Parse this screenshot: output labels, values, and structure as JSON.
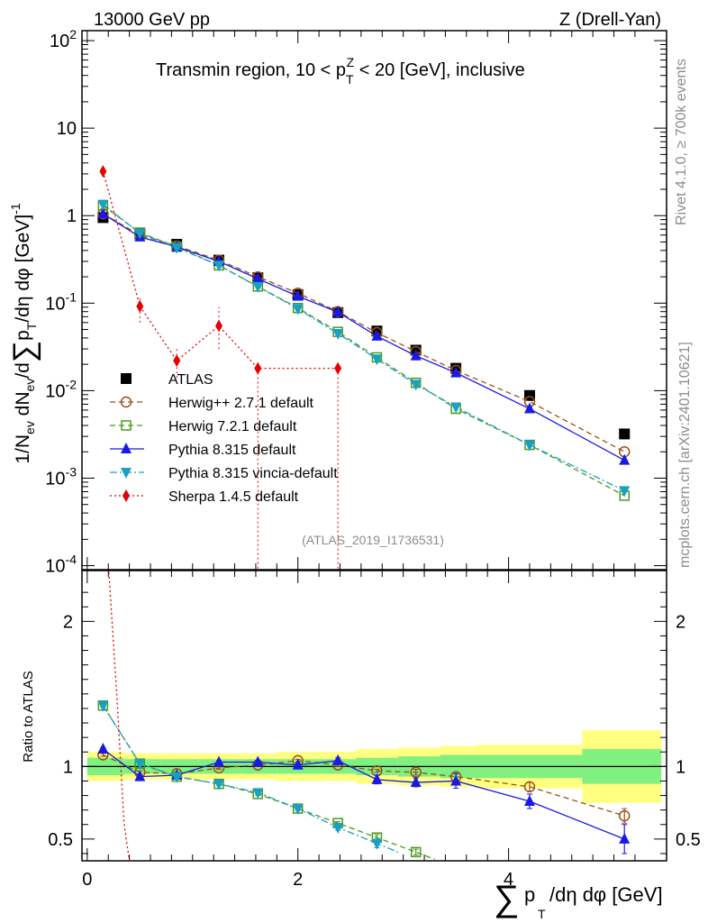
{
  "chart_data": [
    {
      "type": "scatter",
      "title": "Transmin region, 10 < p_T^Z < 20 [GeV], inclusive",
      "header_left": "13000 GeV pp",
      "header_right": "Z (Drell-Yan)",
      "analysis_id": "(ATLAS_2019_I1736531)",
      "ylabel": "1/N_ev dN_ev/d∑p_T/dη dφ [GeV]^-1",
      "yscale": "log",
      "ylim": [
        9e-05,
        130
      ],
      "xlim": [
        -0.05,
        5.5
      ],
      "y_ticks": [
        {
          "v": 100,
          "m": "10",
          "e": "2"
        },
        {
          "v": 10,
          "m": "10",
          "e": ""
        },
        {
          "v": 1,
          "m": "1",
          "e": ""
        },
        {
          "v": 0.1,
          "m": "10",
          "e": "-1"
        },
        {
          "v": 0.01,
          "m": "10",
          "e": "-2"
        },
        {
          "v": 0.001,
          "m": "10",
          "e": "-3"
        },
        {
          "v": 0.0001,
          "m": "10",
          "e": "-4"
        }
      ],
      "series": [
        {
          "name": "ATLAS",
          "color": "#000000",
          "marker": "square",
          "linestyle": "none",
          "x": [
            0.15,
            0.5,
            0.85,
            1.25,
            1.62,
            2.0,
            2.38,
            2.75,
            3.12,
            3.5,
            4.2,
            5.1
          ],
          "y": [
            0.95,
            0.62,
            0.47,
            0.31,
            0.195,
            0.125,
            0.078,
            0.048,
            0.029,
            0.018,
            0.0088,
            0.0032
          ]
        },
        {
          "name": "Herwig++ 2.7.1 default",
          "color": "#9b4f1a",
          "marker": "circle-open",
          "linestyle": "dashed",
          "x": [
            0.15,
            0.5,
            0.85,
            1.25,
            1.62,
            2.0,
            2.38,
            2.75,
            3.12,
            3.5,
            4.2,
            5.1
          ],
          "y": [
            1.05,
            0.6,
            0.45,
            0.31,
            0.2,
            0.13,
            0.08,
            0.046,
            0.028,
            0.017,
            0.0075,
            0.002
          ]
        },
        {
          "name": "Herwig 7.2.1 default",
          "color": "#4a9a1e",
          "marker": "square-open",
          "linestyle": "dashed",
          "x": [
            0.15,
            0.5,
            0.85,
            1.25,
            1.62,
            2.0,
            2.38,
            2.75,
            3.12,
            3.5,
            4.2,
            5.1
          ],
          "y": [
            1.3,
            0.64,
            0.44,
            0.27,
            0.155,
            0.088,
            0.047,
            0.024,
            0.0123,
            0.0062,
            0.0024,
            0.00063
          ]
        },
        {
          "name": "Pythia 8.315 default",
          "color": "#1a1ae6",
          "marker": "triangle-up",
          "linestyle": "solid",
          "x": [
            0.15,
            0.5,
            0.85,
            1.25,
            1.62,
            2.0,
            2.38,
            2.75,
            3.12,
            3.5,
            4.2,
            5.1
          ],
          "y": [
            1.05,
            0.57,
            0.44,
            0.3,
            0.19,
            0.12,
            0.079,
            0.042,
            0.025,
            0.016,
            0.0062,
            0.0016
          ]
        },
        {
          "name": "Pythia 8.315 vincia-default",
          "color": "#1aa0c4",
          "marker": "triangle-down",
          "linestyle": "dashdot",
          "x": [
            0.15,
            0.5,
            0.85,
            1.25,
            1.62,
            2.0,
            2.38,
            2.75,
            3.12,
            3.5,
            4.2,
            5.1
          ],
          "y": [
            1.35,
            0.63,
            0.43,
            0.27,
            0.155,
            0.086,
            0.045,
            0.023,
            0.0118,
            0.0065,
            0.0024,
            0.00072
          ]
        },
        {
          "name": "Sherpa 1.4.5 default",
          "color": "#e60000",
          "marker": "diamond",
          "linestyle": "dotted",
          "x": [
            0.15,
            0.5,
            0.85,
            1.25,
            1.62,
            2.38
          ],
          "y": [
            3.2,
            0.092,
            0.022,
            0.055,
            0.018,
            0.018
          ]
        }
      ],
      "legend_position": "center-left"
    },
    {
      "type": "scatter",
      "title": "Ratio to ATLAS",
      "ylabel": "Ratio to ATLAS",
      "xlabel": "∑p_T/dη dφ [GeV]",
      "ylim": [
        0.35,
        2.35
      ],
      "xlim": [
        -0.05,
        5.5
      ],
      "x_ticks": [
        0,
        2,
        4
      ],
      "y_ticks": [
        0.5,
        1,
        2
      ],
      "band_edges": [
        0,
        0.35,
        0.7,
        1.05,
        1.45,
        1.8,
        2.2,
        2.55,
        2.95,
        3.35,
        3.7,
        4.7,
        5.45
      ],
      "band_inner": [
        0.06,
        0.05,
        0.05,
        0.05,
        0.05,
        0.05,
        0.05,
        0.06,
        0.07,
        0.08,
        0.08,
        0.12
      ],
      "band_outer": [
        0.1,
        0.09,
        0.09,
        0.09,
        0.09,
        0.1,
        0.1,
        0.12,
        0.13,
        0.14,
        0.15,
        0.25
      ],
      "series": [
        {
          "name": "Herwig++ 2.7.1 default",
          "color": "#9b4f1a",
          "marker": "circle-open",
          "linestyle": "dashed",
          "x": [
            0.15,
            0.5,
            0.85,
            1.25,
            1.62,
            2.0,
            2.38,
            2.75,
            3.12,
            3.5,
            4.2,
            5.1
          ],
          "y": [
            1.08,
            0.96,
            0.95,
            0.99,
            1.01,
            1.04,
            1.01,
            0.97,
            0.96,
            0.93,
            0.86,
            0.66
          ],
          "err": [
            0.01,
            0.01,
            0.01,
            0.01,
            0.01,
            0.01,
            0.01,
            0.01,
            0.02,
            0.03,
            0.03,
            0.05
          ]
        },
        {
          "name": "Herwig 7.2.1 default",
          "color": "#4a9a1e",
          "marker": "square-open",
          "linestyle": "dashed",
          "x": [
            0.15,
            0.5,
            0.85,
            1.25,
            1.62,
            2.0,
            2.38,
            2.75,
            3.12,
            3.3
          ],
          "y": [
            1.42,
            1.02,
            0.93,
            0.88,
            0.81,
            0.71,
            0.61,
            0.51,
            0.41,
            0.36
          ],
          "err": [
            0.01,
            0.01,
            0.01,
            0.01,
            0.01,
            0.01,
            0.01,
            0.02,
            0.02,
            0.0
          ]
        },
        {
          "name": "Pythia 8.315 default",
          "color": "#1a1ae6",
          "marker": "triangle-up",
          "linestyle": "solid",
          "x": [
            0.15,
            0.5,
            0.85,
            1.25,
            1.62,
            2.0,
            2.38,
            2.75,
            3.12,
            3.5,
            4.2,
            5.1
          ],
          "y": [
            1.12,
            0.93,
            0.94,
            1.03,
            1.03,
            1.01,
            1.04,
            0.91,
            0.89,
            0.9,
            0.76,
            0.5
          ],
          "err": [
            0.01,
            0.01,
            0.01,
            0.01,
            0.01,
            0.01,
            0.02,
            0.03,
            0.03,
            0.05,
            0.05,
            0.1
          ]
        },
        {
          "name": "Pythia 8.315 vincia-default",
          "color": "#1aa0c4",
          "marker": "triangle-down",
          "linestyle": "dashdot",
          "x": [
            0.15,
            0.5,
            0.85,
            1.25,
            1.62,
            2.0,
            2.38,
            2.75,
            2.95
          ],
          "y": [
            1.42,
            1.02,
            0.93,
            0.88,
            0.82,
            0.71,
            0.58,
            0.47,
            0.41
          ],
          "err": [
            0.01,
            0.01,
            0.01,
            0.01,
            0.01,
            0.01,
            0.02,
            0.03,
            0.0
          ]
        },
        {
          "name": "Sherpa 1.4.5 default",
          "color": "#e60000",
          "marker": "none",
          "linestyle": "dotted",
          "x": [
            0.2,
            0.28,
            0.35,
            0.4
          ],
          "y": [
            2.4,
            1.5,
            0.6,
            0.35
          ],
          "err": [
            0,
            0,
            0,
            0
          ]
        }
      ]
    }
  ],
  "watermark_right": "Rivet 4.1.0, ≥ 700k events",
  "watermark_site": "mcplots.cern.ch [arXiv:2401.10621]"
}
